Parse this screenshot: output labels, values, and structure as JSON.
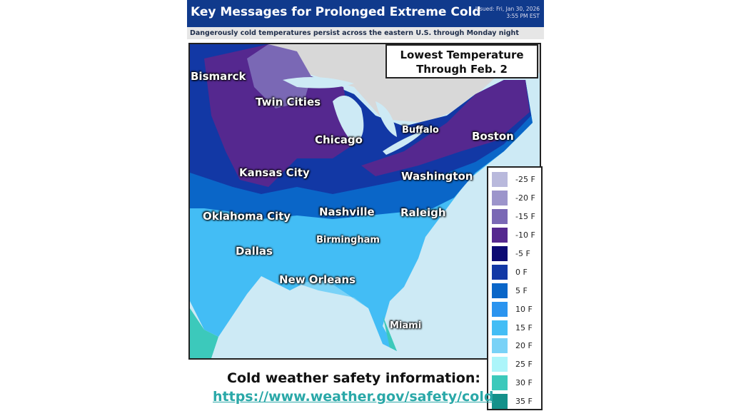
{
  "header": {
    "title": "Key Messages for Prolonged Extreme Cold",
    "issued_line1": "Issued: Fri, Jan 30, 2026",
    "issued_line2": "3:55 PM EST"
  },
  "subtitle": "Dangerously cold temperatures persist across the eastern U.S. through Monday night",
  "map": {
    "title_line1": "Lowest Temperature",
    "title_line2": "Through Feb. 2",
    "cities": [
      "Bismarck",
      "Twin Cities",
      "Chicago",
      "Buffalo",
      "Boston",
      "Kansas City",
      "Washington",
      "Oklahoma City",
      "Nashville",
      "Raleigh",
      "Birmingham",
      "Dallas",
      "New Orleans",
      "Miami"
    ]
  },
  "legend": [
    {
      "label": "-25 F",
      "color": "#b9b9dc"
    },
    {
      "label": "-20 F",
      "color": "#9c95cb"
    },
    {
      "label": "-15 F",
      "color": "#7a68b5"
    },
    {
      "label": "-10 F",
      "color": "#55288f"
    },
    {
      "label": "-5 F",
      "color": "#0c0a73"
    },
    {
      "label": "0 F",
      "color": "#1238a5"
    },
    {
      "label": "5 F",
      "color": "#0a66c8"
    },
    {
      "label": "10 F",
      "color": "#2b94ef"
    },
    {
      "label": "15 F",
      "color": "#43bdf5"
    },
    {
      "label": "20 F",
      "color": "#79d2f7"
    },
    {
      "label": "25 F",
      "color": "#acf5fa"
    },
    {
      "label": "30 F",
      "color": "#3cc9bb"
    },
    {
      "label": "35 F",
      "color": "#14918a"
    }
  ],
  "footer": {
    "line1": "Cold weather safety information:",
    "link": "https://www.weather.gov/safety/cold"
  }
}
